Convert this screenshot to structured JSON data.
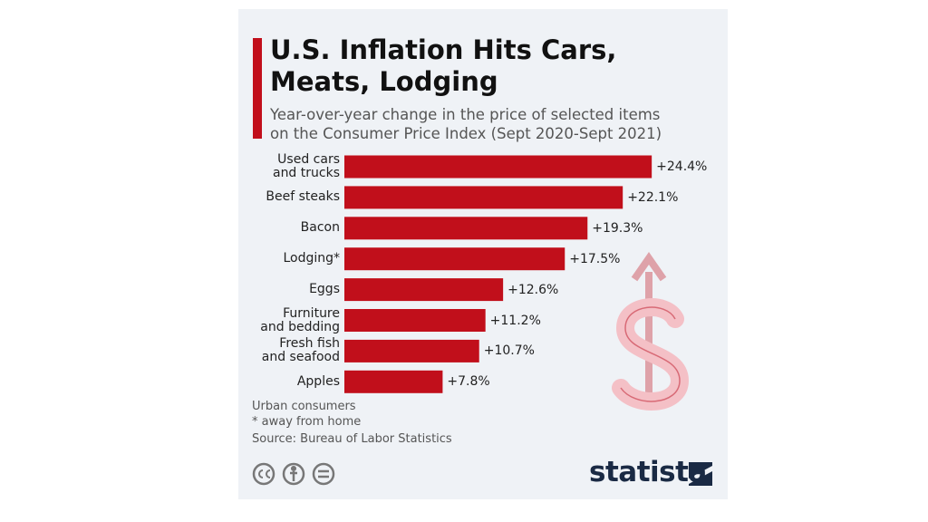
{
  "chart_data": {
    "type": "bar",
    "orientation": "horizontal",
    "title": "U.S. Inflation Hits Cars,\nMeats, Lodging",
    "subtitle": "Year-over-year change in the price of selected items\non the Consumer Price Index (Sept 2020-Sept 2021)",
    "categories": [
      "Used cars\nand trucks",
      "Beef steaks",
      "Bacon",
      "Lodging*",
      "Eggs",
      "Furniture\nand bedding",
      "Fresh fish\nand seafood",
      "Apples"
    ],
    "values": [
      24.4,
      22.1,
      19.3,
      17.5,
      12.6,
      11.2,
      10.7,
      7.8
    ],
    "value_labels": [
      "+24.4%",
      "+22.1%",
      "+19.3%",
      "+17.5%",
      "+12.6%",
      "+11.2%",
      "+10.7%",
      "+7.8%"
    ],
    "color": "#c10f1b",
    "notes": [
      "Urban consumers",
      "* away from home",
      "Source: Bureau of Labor Statistics"
    ],
    "brand": "statista"
  }
}
